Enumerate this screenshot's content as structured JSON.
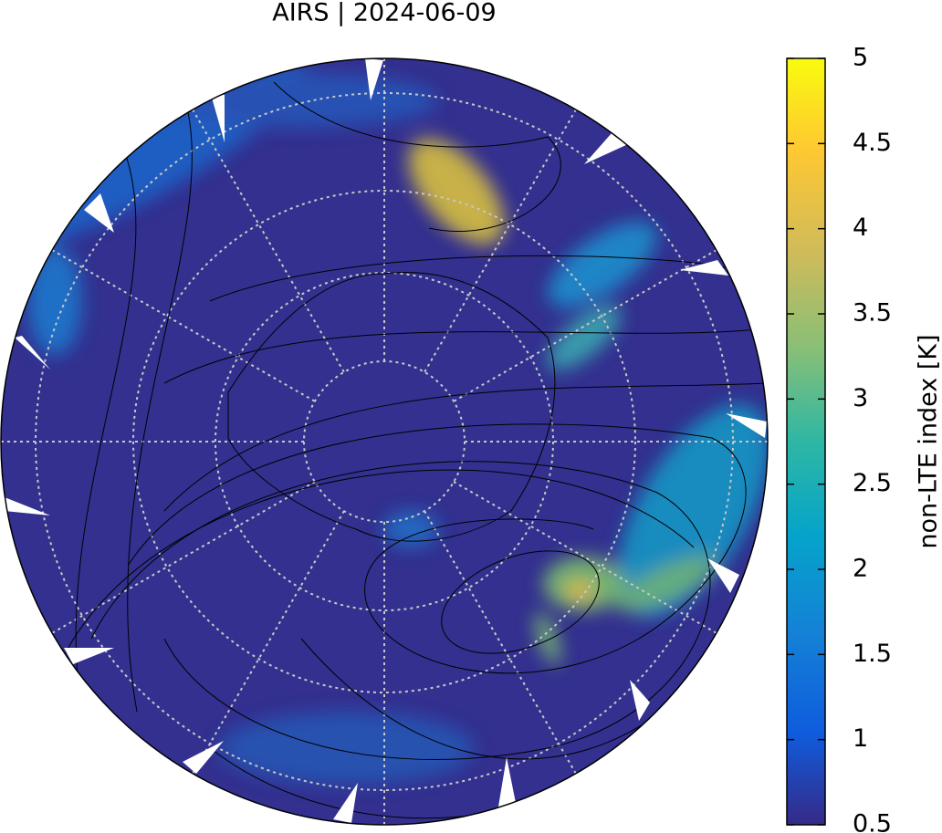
{
  "title": "AIRS | 2024-06-09",
  "colorbar": {
    "label": "non-LTE index [K]",
    "range": [
      0.5,
      5
    ],
    "ticks": [
      0.5,
      1,
      1.5,
      2,
      2.5,
      3,
      3.5,
      4,
      4.5,
      5
    ]
  }
}
